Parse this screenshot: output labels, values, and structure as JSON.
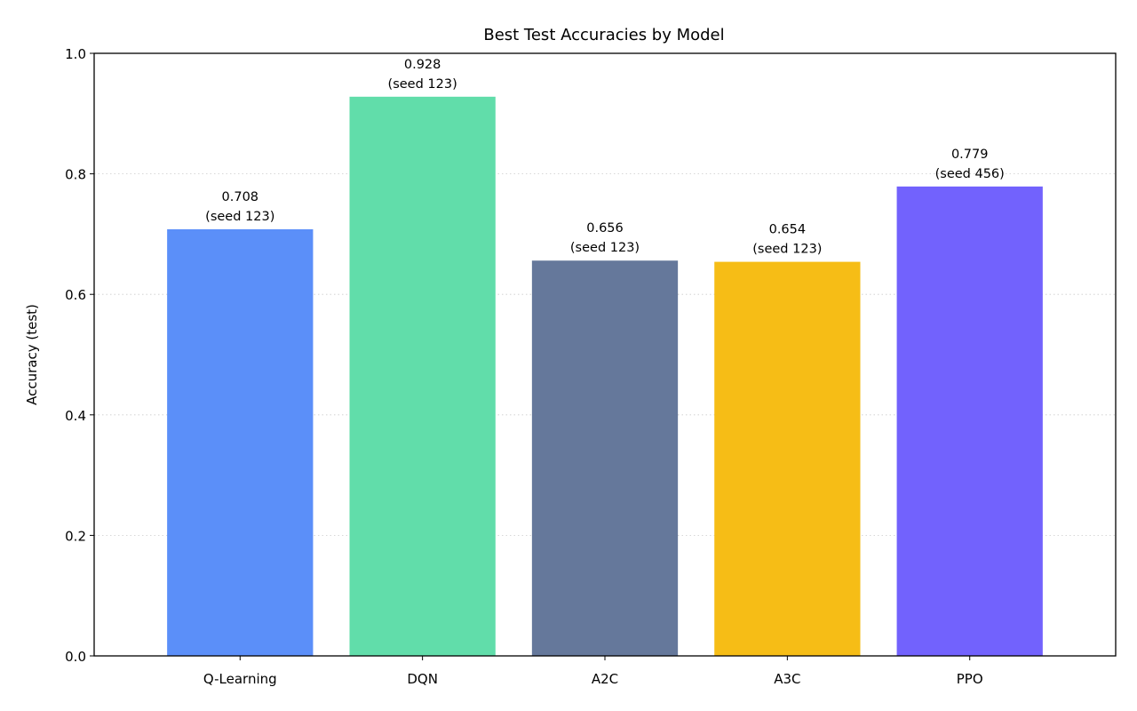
{
  "chart_data": {
    "type": "bar",
    "title": "Best Test Accuracies by Model",
    "xlabel": "",
    "ylabel": "Accuracy (test)",
    "ylim": [
      0,
      1.0
    ],
    "yticks": [
      "0.0",
      "0.2",
      "0.4",
      "0.6",
      "0.8",
      "1.0"
    ],
    "grid": "y-dotted",
    "categories": [
      "Q-Learning",
      "DQN",
      "A2C",
      "A3C",
      "PPO"
    ],
    "values": [
      0.708,
      0.928,
      0.656,
      0.654,
      0.779
    ],
    "value_labels": [
      "0.708",
      "0.928",
      "0.656",
      "0.654",
      "0.779"
    ],
    "seed_labels": [
      "(seed 123)",
      "(seed 123)",
      "(seed 123)",
      "(seed 123)",
      "(seed 456)"
    ],
    "colors": [
      "#5b8ff9",
      "#61ddaa",
      "#65789b",
      "#f6bd16",
      "#7262fd"
    ]
  }
}
